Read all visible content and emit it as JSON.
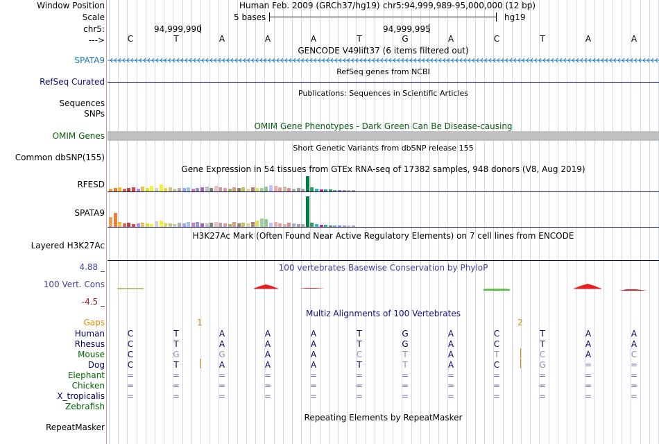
{
  "labels": {
    "window_position": "Window Position",
    "scale": "Scale",
    "chr": "chr5:",
    "arrow": "--->",
    "spata9_gene": "SPATA9",
    "refseq": "RefSeq Curated",
    "sequences": "Sequences",
    "snps": "SNPs",
    "omim": "OMIM Genes",
    "common_dbsnp": "Common dbSNP(155)",
    "rfesd": "RFESD",
    "spata9_gtex": "SPATA9",
    "h3k27ac": "Layered H3K27Ac",
    "phylop_max": "4.88 _",
    "vert_cons": "100 Vert. Cons",
    "phylop_min": "-4.5 _",
    "gaps": "Gaps",
    "repeatmasker": "RepeatMasker"
  },
  "header": {
    "assembly": "Human Feb. 2009 (GRCh37/hg19)",
    "position": "chr5:94,999,989-95,000,000 (12 bp)",
    "scale_text": "5 bases",
    "db": "hg19",
    "coord1": "94,999,990",
    "coord2": "94,999,995"
  },
  "sequence": [
    "C",
    "T",
    "A",
    "A",
    "A",
    "T",
    "G",
    "A",
    "C",
    "T",
    "A",
    "A"
  ],
  "titles": {
    "gencode": "GENCODE V49lift37 (6 items filtered out)",
    "refseq": "RefSeq genes from NCBI",
    "publications": "Publications: Sequences in Scientific Articles",
    "omim": "OMIM Gene Phenotypes - Dark Green Can Be Disease-causing",
    "dbsnp": "Short Genetic Variants from dbSNP release 155",
    "gtex": "Gene Expression in 54 tissues from GTEx RNA-seq of 17382 samples, 948 donors (V8, Aug 2019)",
    "h3k27ac": "H3K27Ac Mark (Often Found Near Active Regulatory Elements) on 7 cell lines from ENCODE",
    "phylop": "100 vertebrates Basewise Conservation by PhyloP",
    "multiz": "Multiz Alignments of 100 Vertebrates",
    "repeat": "Repeating Elements by RepeatMasker"
  },
  "gaps": {
    "gap1": "1",
    "gap2": "2"
  },
  "species": [
    {
      "name": "Human",
      "color": "#000066",
      "bases": [
        "C",
        "T",
        "A",
        "A",
        "A",
        "T",
        "G",
        "A",
        "C",
        "T",
        "A",
        "A"
      ]
    },
    {
      "name": "Rhesus",
      "color": "#000066",
      "bases": [
        "C",
        "T",
        "A",
        "A",
        "A",
        "T",
        "G",
        "A",
        "C",
        "T",
        "A",
        "A"
      ]
    },
    {
      "name": "Mouse",
      "color": "#006600",
      "bases": [
        "C",
        "G",
        "G",
        "A",
        "A",
        "C",
        "T",
        "A",
        "T",
        "C",
        "A",
        "C"
      ]
    },
    {
      "name": "Dog",
      "color": "#000066",
      "bases": [
        "C",
        "T",
        "A",
        "A",
        "A",
        "T",
        "T",
        "A",
        "C",
        "G",
        "=",
        "="
      ]
    },
    {
      "name": "Elephant",
      "color": "#006600",
      "bases": [
        "=",
        "=",
        "=",
        "=",
        "=",
        "=",
        "=",
        "=",
        "=",
        "=",
        "=",
        "="
      ]
    },
    {
      "name": "Chicken",
      "color": "#006600",
      "bases": [
        "=",
        "=",
        "=",
        "=",
        "=",
        "=",
        "=",
        "=",
        "=",
        "=",
        "=",
        "="
      ]
    },
    {
      "name": "X_tropicalis",
      "color": "#000066",
      "bases": [
        "=",
        "=",
        "=",
        "=",
        "=",
        "=",
        "=",
        "=",
        "=",
        "=",
        "=",
        "="
      ]
    },
    {
      "name": "Zebrafish",
      "color": "#006600",
      "bases": [
        "",
        "",
        "",
        "",
        "",
        "",
        "",
        "",
        "",
        "",
        "",
        ""
      ]
    }
  ],
  "colors": {
    "gencode": "#1f77b4",
    "refseq": "#0c0c78",
    "omim_title": "#0b5d0b",
    "phylop_title": "#3f3f9f",
    "gaps": "#d88a00",
    "conserved": "#e61e1e",
    "grid": "#cfd8e8"
  }
}
